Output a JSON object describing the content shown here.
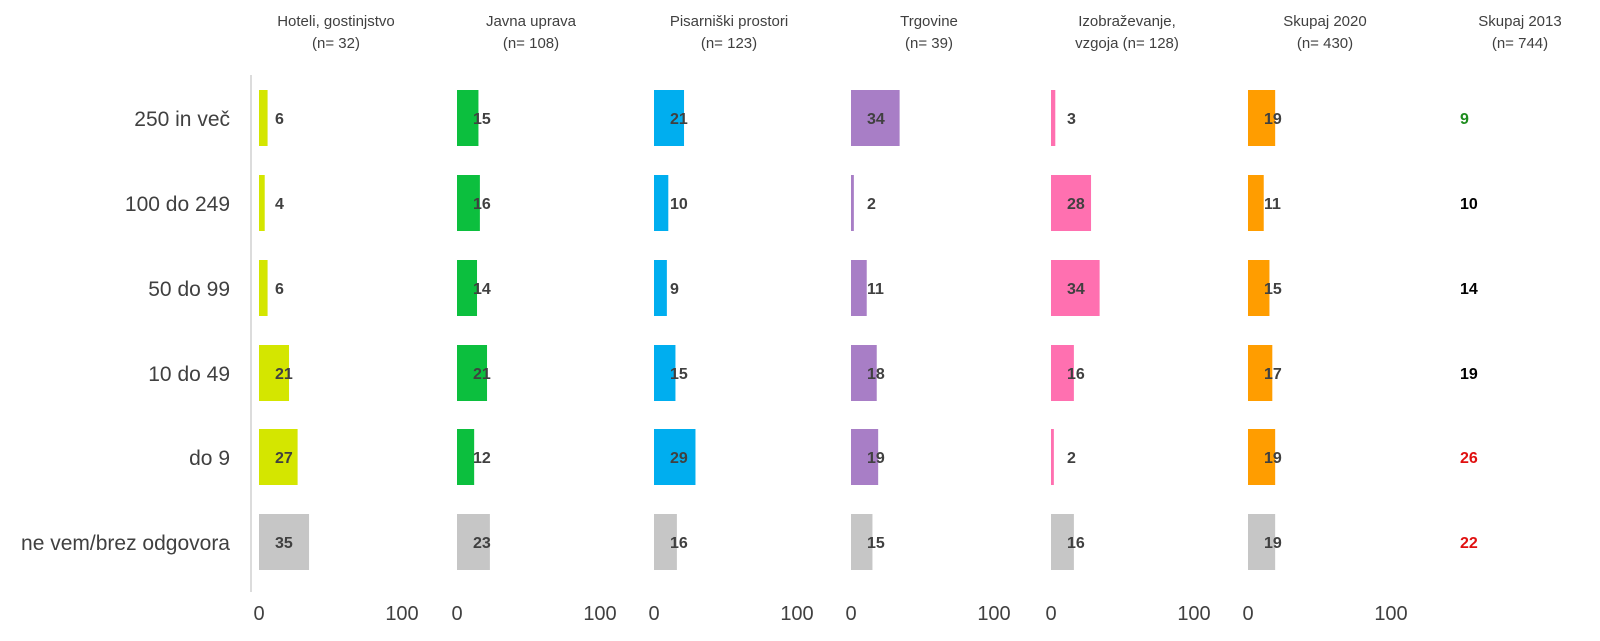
{
  "chart_data": {
    "type": "bar",
    "orientation": "horizontal",
    "categories": [
      "250 in več",
      "100 do 249",
      "50 do 99",
      "10 do 49",
      "do 9",
      "ne vem/brez odgovora"
    ],
    "xlim": [
      0,
      100
    ],
    "x_ticks": [
      "0",
      "100"
    ],
    "grid": false,
    "series": [
      {
        "name_line1": "Hoteli, gostinjstvo",
        "name_line2": "(n= 32)",
        "color": "#d4e600",
        "values": [
          6,
          4,
          6,
          21,
          27,
          35
        ]
      },
      {
        "name_line1": "Javna uprava",
        "name_line2": "(n= 108)",
        "color": "#0cbf3e",
        "values": [
          15,
          16,
          14,
          21,
          12,
          23
        ]
      },
      {
        "name_line1": "Pisarniški prostori",
        "name_line2": "(n= 123)",
        "color": "#00aeef",
        "values": [
          21,
          10,
          9,
          15,
          29,
          16
        ]
      },
      {
        "name_line1": "Trgovine",
        "name_line2": "(n= 39)",
        "color": "#a87ec6",
        "values": [
          34,
          2,
          11,
          18,
          19,
          15
        ]
      },
      {
        "name_line1": "Izobraževanje,",
        "name_line2": "vzgoja (n= 128)",
        "color": "#ff70b0",
        "values": [
          3,
          28,
          34,
          16,
          2,
          16
        ]
      },
      {
        "name_line1": "Skupaj 2020",
        "name_line2": "(n= 430)",
        "color": "#ff9d00",
        "values": [
          19,
          11,
          15,
          17,
          19,
          19
        ]
      }
    ],
    "last_row_color": "#c6c6c6",
    "comparison": {
      "name_line1": "Skupaj 2013",
      "name_line2": "(n= 744)",
      "values": [
        9,
        10,
        14,
        19,
        26,
        22
      ],
      "colors": [
        "#1e8c1e",
        "#000000",
        "#000000",
        "#000000",
        "#e01010",
        "#e01010"
      ]
    }
  }
}
